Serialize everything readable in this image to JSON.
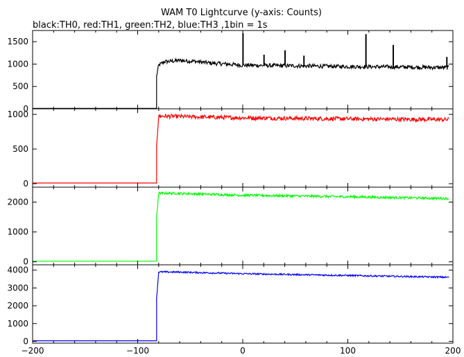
{
  "chart_data": {
    "type": "line",
    "title": "WAM T0 Lightcurve (y-axis: Counts)",
    "subtitle": "black:TH0, red:TH1, green:TH2, blue:TH3 ,1bin = 1s",
    "xlabel": "",
    "ylabel": "",
    "xlim": [
      -200,
      200
    ],
    "xticks": [
      -200,
      -100,
      0,
      100,
      200
    ],
    "xtick_labels": [
      "−200",
      "−100",
      "0",
      "100",
      "200"
    ],
    "x_range": [
      -200,
      196
    ],
    "grid": false,
    "panels": [
      {
        "series_name": "TH0",
        "color": "#000000",
        "ylim": [
          0,
          1750
        ],
        "yticks": [
          0,
          500,
          1000,
          1500
        ],
        "ytick_labels": [
          "0",
          "500",
          "1000",
          "1500"
        ],
        "pre_level": 10,
        "step_time": -82,
        "segments": [
          {
            "x": -82,
            "y": 730
          },
          {
            "x": -80,
            "y": 970
          },
          {
            "x": -75,
            "y": 1050
          },
          {
            "x": -60,
            "y": 1080
          },
          {
            "x": -45,
            "y": 1060
          },
          {
            "x": -30,
            "y": 1020
          },
          {
            "x": -15,
            "y": 1000
          },
          {
            "x": 0,
            "y": 975
          },
          {
            "x": 50,
            "y": 960
          },
          {
            "x": 100,
            "y": 945
          },
          {
            "x": 150,
            "y": 935
          },
          {
            "x": 196,
            "y": 920
          }
        ],
        "noise": 45,
        "spikes": [
          {
            "x": 0,
            "y": 1680
          },
          {
            "x": 20,
            "y": 1200
          },
          {
            "x": 40,
            "y": 1300
          },
          {
            "x": 58,
            "y": 1180
          },
          {
            "x": 117,
            "y": 1660
          },
          {
            "x": 143,
            "y": 1420
          },
          {
            "x": 194,
            "y": 1150
          }
        ]
      },
      {
        "series_name": "TH1",
        "color": "#ff0000",
        "ylim": [
          -50,
          1080
        ],
        "yticks": [
          0,
          500,
          1000
        ],
        "ytick_labels": [
          "0",
          "500",
          "1000"
        ],
        "pre_level": 10,
        "step_time": -82,
        "segments": [
          {
            "x": -82,
            "y": 560
          },
          {
            "x": -80,
            "y": 975
          },
          {
            "x": 0,
            "y": 950
          },
          {
            "x": 100,
            "y": 935
          },
          {
            "x": 196,
            "y": 925
          }
        ],
        "noise": 30,
        "spikes": []
      },
      {
        "series_name": "TH2",
        "color": "#00ff00",
        "ylim": [
          -100,
          2500
        ],
        "yticks": [
          0,
          1000,
          2000
        ],
        "ytick_labels": [
          "0",
          "1000",
          "2000"
        ],
        "pre_level": 20,
        "step_time": -82,
        "segments": [
          {
            "x": -82,
            "y": 1500
          },
          {
            "x": -80,
            "y": 2300
          },
          {
            "x": -60,
            "y": 2290
          },
          {
            "x": 0,
            "y": 2230
          },
          {
            "x": 100,
            "y": 2180
          },
          {
            "x": 196,
            "y": 2120
          }
        ],
        "noise": 40,
        "spikes": []
      },
      {
        "series_name": "TH3",
        "color": "#0000ff",
        "ylim": [
          -100,
          4300
        ],
        "yticks": [
          0,
          1000,
          2000,
          3000,
          4000
        ],
        "ytick_labels": [
          "0",
          "1000",
          "2000",
          "3000",
          "4000"
        ],
        "pre_level": 30,
        "step_time": -82,
        "segments": [
          {
            "x": -82,
            "y": 2400
          },
          {
            "x": -80,
            "y": 3900
          },
          {
            "x": -60,
            "y": 3890
          },
          {
            "x": 0,
            "y": 3800
          },
          {
            "x": 100,
            "y": 3700
          },
          {
            "x": 196,
            "y": 3600
          }
        ],
        "noise": 45,
        "spikes": []
      }
    ]
  }
}
